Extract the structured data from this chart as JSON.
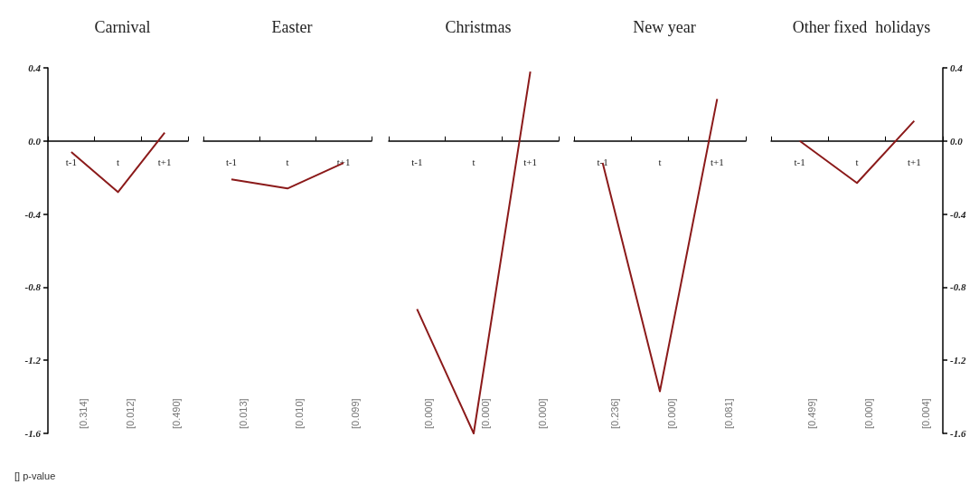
{
  "chart_data": [
    {
      "type": "line",
      "title": "Carnival",
      "categories": [
        "t-1",
        "t",
        "t+1"
      ],
      "series": [
        {
          "color": "#8b1a1a",
          "values": [
            -0.06,
            -0.28,
            0.045
          ]
        }
      ],
      "ylim": [
        -1.6,
        0.4
      ],
      "yticks": [
        -1.6,
        -1.2,
        -0.8,
        -0.4,
        {
          "value": 0,
          "label": "0.0"
        },
        0.4
      ],
      "marker": "none",
      "line_style": "solid",
      "annotations": [
        "[0.314]",
        "[0.012]",
        "[0.490]",
        "[] p-value"
      ]
    },
    {
      "type": "line",
      "title": "Easter",
      "categories": [
        "t-1",
        "t",
        "t+1"
      ],
      "series": [
        {
          "color": "#8b1a1a",
          "values": [
            -0.21,
            -0.26,
            -0.12
          ]
        }
      ],
      "ylim": [
        -1.6,
        0.4
      ],
      "tick_labels": "x",
      "marker": "none",
      "line_style": "solid",
      "annotations": [
        "[0.013]",
        "[0.010]",
        "[0.099]"
      ]
    },
    {
      "type": "line",
      "title": "Christmas",
      "categories": [
        "t-1",
        "t",
        "t+1"
      ],
      "series": [
        {
          "color": "#8b1a1a",
          "values": [
            -0.92,
            -1.6,
            0.38
          ]
        }
      ],
      "ylim": [
        -1.6,
        0.4
      ],
      "tick_labels": "x",
      "marker": "none",
      "line_style": "solid",
      "annotations": [
        "[0.000]",
        "[0.000]",
        "[0.000]"
      ]
    },
    {
      "type": "line",
      "title": "New year",
      "categories": [
        "t-1",
        "t",
        "t+1"
      ],
      "series": [
        {
          "color": "#8b1a1a",
          "values": [
            -0.12,
            -1.37,
            0.23
          ]
        }
      ],
      "ylim": [
        -1.6,
        0.4
      ],
      "tick_labels": "x",
      "marker": "none",
      "line_style": "solid",
      "annotations": [
        "[0.236]",
        "[0.000]",
        "[0.081]"
      ]
    },
    {
      "type": "line",
      "title": "Other fixed  holidays",
      "categories": [
        "t-1",
        "t",
        "t+1"
      ],
      "series": [
        {
          "color": "#8b1a1a",
          "values": [
            0.0,
            -0.23,
            0.11
          ]
        }
      ],
      "ylim": [
        -1.6,
        0.4
      ],
      "yticks": [
        -1.6,
        -1.2,
        -0.8,
        -0.4,
        {
          "value": 0,
          "label": "0.0"
        },
        0.4
      ],
      "marker": "none",
      "line_style": "solid",
      "annotations": [
        "[0.499]",
        "[0.000]",
        "[0.004]"
      ]
    }
  ]
}
